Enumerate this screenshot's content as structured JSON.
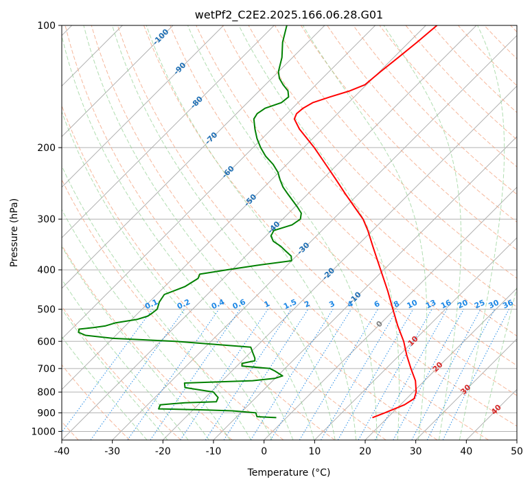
{
  "chart_data": {
    "type": "line",
    "diagram": "skew-T log-p",
    "title": "wetPf2_C2E2.2025.166.06.28.G01",
    "xlabel": "Temperature (°C)",
    "ylabel": "Pressure (hPa)",
    "xlim": [
      -40,
      50
    ],
    "ylim": [
      1050,
      100
    ],
    "y_scale": "log",
    "grid": true,
    "x_ticks": [
      -40,
      -30,
      -20,
      -10,
      0,
      10,
      20,
      30,
      40,
      50
    ],
    "y_ticks": [
      100,
      200,
      300,
      400,
      500,
      600,
      700,
      800,
      900,
      1000
    ],
    "isotherm_labels": [
      -100,
      -90,
      -80,
      -70,
      -60,
      -50,
      -40,
      -30,
      -20,
      -10,
      0,
      10,
      20,
      30,
      40
    ],
    "mixing_ratio_labels": [
      "0.1",
      "0.2",
      "0.4",
      "0.6",
      "1",
      "1.5",
      "2",
      "3",
      "4",
      "6",
      "8",
      "10",
      "13",
      "16",
      "20",
      "25",
      "30",
      "36"
    ],
    "colors": {
      "temperature": "#ff0000",
      "dewpoint": "#008000",
      "dry_adiabat": "#f4a582",
      "moist_adiabat": "#8fcf8f",
      "mixing_ratio": "#1e88e5",
      "isotherm_label": "#1f6fb4",
      "warm_label": "#d62728",
      "zero_label": "#808080"
    },
    "series": [
      {
        "name": "temperature",
        "pressure": [
          925,
          900,
          860,
          830,
          800,
          750,
          700,
          650,
          600,
          550,
          500,
          450,
          400,
          350,
          320,
          300,
          280,
          260,
          240,
          220,
          200,
          180,
          170,
          165,
          160,
          155,
          150,
          145,
          140,
          130,
          120,
          110,
          100
        ],
        "temp": [
          17.0,
          18.5,
          20.8,
          21.5,
          20.6,
          18.2,
          14.9,
          11.5,
          8.1,
          3.9,
          -0.4,
          -5.1,
          -10.6,
          -16.8,
          -20.9,
          -24.1,
          -28.2,
          -32.6,
          -37.2,
          -42.3,
          -47.9,
          -54.5,
          -57.5,
          -58.1,
          -57.9,
          -57.1,
          -54.8,
          -52.1,
          -50.3,
          -49.8,
          -49.1,
          -48.4,
          -47.8
        ]
      },
      {
        "name": "dewpoint",
        "pressure": [
          925,
          920,
          910,
          900,
          890,
          885,
          880,
          860,
          850,
          845,
          825,
          800,
          780,
          760,
          750,
          740,
          730,
          710,
          700,
          690,
          680,
          670,
          660,
          640,
          620,
          600,
          590,
          580,
          570,
          560,
          555,
          550,
          540,
          530,
          520,
          510,
          500,
          480,
          460,
          440,
          420,
          410,
          400,
          390,
          380,
          370,
          360,
          350,
          340,
          330,
          320,
          310,
          300,
          290,
          280,
          270,
          260,
          250,
          240,
          230,
          220,
          210,
          200,
          190,
          180,
          170,
          165,
          160,
          155,
          150,
          145,
          140,
          135,
          130,
          120,
          110,
          100
        ],
        "temp": [
          -2.0,
          -6.0,
          -6.5,
          -7.0,
          -12.0,
          -18.0,
          -27.0,
          -27.5,
          -23.0,
          -17.0,
          -17.5,
          -19.5,
          -26.0,
          -27.0,
          -14.0,
          -10.0,
          -9.0,
          -11.5,
          -13.0,
          -19.0,
          -19.5,
          -17.5,
          -18.0,
          -19.5,
          -21.0,
          -37.0,
          -50.0,
          -56.0,
          -58.0,
          -58.5,
          -56.0,
          -54.0,
          -52.5,
          -49.0,
          -47.5,
          -47.2,
          -47.0,
          -48.0,
          -48.5,
          -46.0,
          -45.0,
          -45.5,
          -41.0,
          -36.0,
          -30.0,
          -31.0,
          -33.0,
          -35.0,
          -37.5,
          -39.0,
          -39.5,
          -37.0,
          -36.5,
          -37.5,
          -39.5,
          -41.7,
          -44.0,
          -46.3,
          -48.3,
          -50.2,
          -52.7,
          -55.8,
          -58.5,
          -61.0,
          -63.3,
          -65.5,
          -65.9,
          -65.4,
          -63.3,
          -63.0,
          -64.3,
          -66.5,
          -68.5,
          -70.0,
          -72.1,
          -75.0,
          -77.5
        ]
      }
    ]
  }
}
